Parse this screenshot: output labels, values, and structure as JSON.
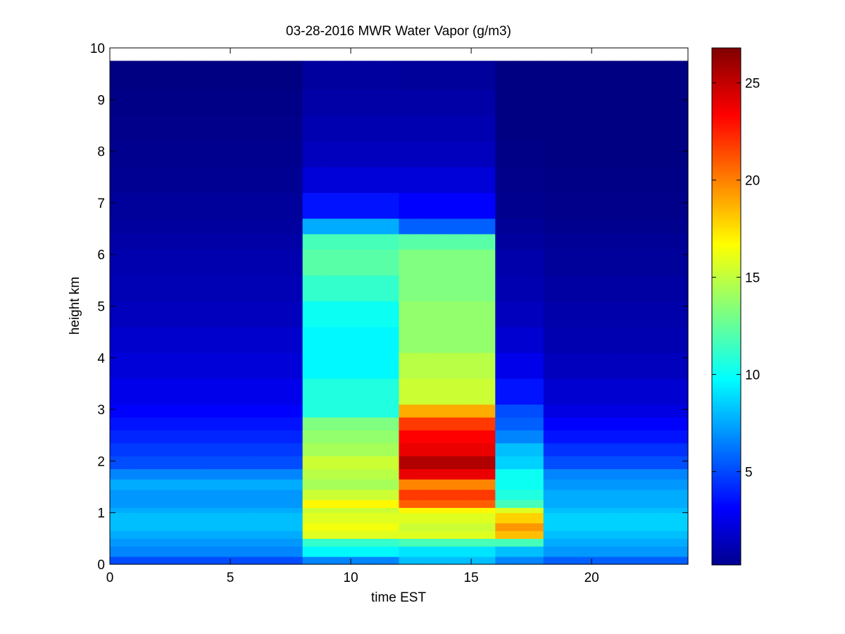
{
  "chart_data": {
    "type": "heatmap",
    "title": "03-28-2016 MWR Water Vapor (g/m3)",
    "xlabel": "time EST",
    "ylabel": "height km",
    "xlim": [
      0,
      24
    ],
    "ylim": [
      0,
      10
    ],
    "x_ticks": [
      0,
      5,
      10,
      15,
      20
    ],
    "y_ticks": [
      0,
      1,
      2,
      3,
      4,
      5,
      6,
      7,
      8,
      9,
      10
    ],
    "x_tick_labels": [
      "0",
      "5",
      "10",
      "15",
      "20"
    ],
    "y_tick_labels": [
      "0",
      "1",
      "2",
      "3",
      "4",
      "5",
      "6",
      "7",
      "8",
      "9",
      "10"
    ],
    "colormap": "jet",
    "colorbar": {
      "range": [
        0.2,
        26.8
      ],
      "ticks": [
        5,
        10,
        15,
        20,
        25
      ],
      "tick_labels": [
        "5",
        "10",
        "15",
        "20",
        "25"
      ]
    },
    "grid": false,
    "time_bins_hours": [
      0,
      1,
      2,
      3,
      4,
      5,
      6,
      7,
      8,
      9,
      10,
      11,
      12,
      13,
      14,
      15,
      16,
      17,
      18,
      19,
      20,
      21,
      22,
      23
    ],
    "height_edges_km": [
      0,
      0.15,
      0.35,
      0.5,
      0.65,
      0.8,
      1.0,
      1.1,
      1.25,
      1.45,
      1.65,
      1.85,
      2.1,
      2.35,
      2.6,
      2.85,
      3.1,
      3.6,
      4.1,
      4.6,
      5.1,
      5.6,
      6.1,
      6.4,
      6.7,
      7.2,
      7.7,
      8.2,
      8.7,
      9.2,
      9.75
    ],
    "profiles": {
      "night_early": [
        5.5,
        7.0,
        7.5,
        8.0,
        8.5,
        8.5,
        8.0,
        7.5,
        7.5,
        8.0,
        7.0,
        5.5,
        5.0,
        4.5,
        4.0,
        3.5,
        3.0,
        2.5,
        2.2,
        1.8,
        1.6,
        1.4,
        1.2,
        1.0,
        0.9,
        0.7,
        0.6,
        0.5,
        0.4,
        0.3
      ],
      "morning_moist": [
        7.0,
        10.0,
        11.5,
        16.0,
        16.5,
        16.0,
        15.5,
        17.0,
        15.5,
        14.5,
        15.0,
        15.5,
        14.5,
        14.0,
        13.5,
        11.0,
        11.0,
        10.0,
        10.0,
        10.5,
        11.5,
        12.5,
        12.0,
        8.0,
        4.0,
        2.5,
        1.8,
        1.5,
        1.2,
        1.0
      ],
      "midday_peak": [
        8.5,
        9.5,
        12.0,
        16.0,
        15.5,
        16.0,
        17.0,
        21.0,
        22.0,
        20.0,
        24.0,
        25.5,
        24.0,
        23.5,
        22.0,
        19.0,
        15.5,
        15.0,
        14.0,
        14.0,
        13.5,
        13.5,
        12.5,
        6.0,
        3.5,
        2.5,
        1.8,
        1.5,
        1.2,
        0.9
      ],
      "afternoon_decline": [
        7.0,
        8.5,
        12.0,
        18.5,
        19.5,
        18.0,
        16.0,
        12.0,
        11.0,
        10.5,
        10.5,
        9.0,
        8.5,
        7.0,
        6.0,
        5.5,
        4.0,
        3.0,
        2.3,
        1.8,
        1.5,
        1.3,
        1.0,
        0.8,
        0.6,
        0.5,
        0.4,
        0.3,
        0.3,
        0.3
      ],
      "night_late": [
        6.0,
        7.5,
        8.0,
        8.5,
        9.0,
        9.0,
        8.5,
        8.0,
        8.0,
        7.5,
        7.0,
        5.5,
        4.8,
        4.0,
        3.5,
        2.8,
        2.3,
        1.8,
        1.5,
        1.3,
        1.1,
        0.9,
        0.8,
        0.6,
        0.5,
        0.4,
        0.3,
        0.3,
        0.3,
        0.3
      ]
    },
    "time_profile_assignment": [
      "night_early",
      "night_early",
      "night_early",
      "night_early",
      "night_early",
      "night_early",
      "night_early",
      "night_early",
      "morning_moist",
      "morning_moist",
      "morning_moist",
      "morning_moist",
      "midday_peak",
      "midday_peak",
      "midday_peak",
      "midday_peak",
      "afternoon_decline",
      "afternoon_decline",
      "night_late",
      "night_late",
      "night_late",
      "night_late",
      "night_late",
      "night_late"
    ]
  }
}
